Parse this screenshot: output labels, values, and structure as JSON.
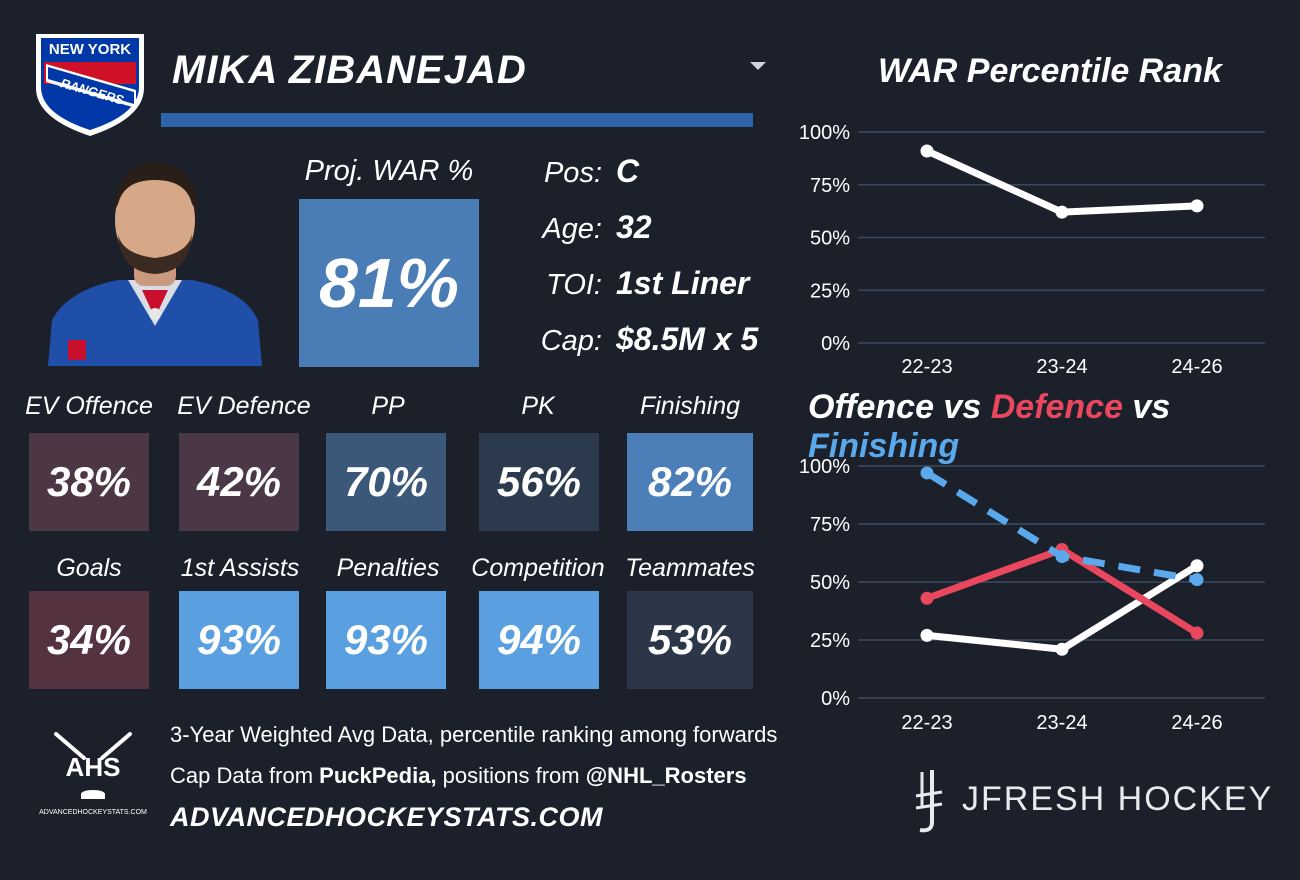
{
  "player": {
    "name": "MIKA ZIBANEJAD",
    "team_logo_text_top": "NEW YORK",
    "team_logo_text_bottom": "RANGERS",
    "proj_war_label": "Proj. WAR %",
    "proj_war_value": "81%",
    "info": [
      {
        "label": "Pos:",
        "value": "C"
      },
      {
        "label": "Age:",
        "value": "32"
      },
      {
        "label": "TOI:",
        "value": "1st Liner"
      },
      {
        "label": "Cap:",
        "value": "$8.5M x 5"
      }
    ]
  },
  "stats_row1": [
    {
      "label": "EV Offence",
      "value": "38%",
      "color": "#4e3744"
    },
    {
      "label": "EV Defence",
      "value": "42%",
      "color": "#4a3847"
    },
    {
      "label": "PP",
      "value": "70%",
      "color": "#3c5879"
    },
    {
      "label": "PK",
      "value": "56%",
      "color": "#2c3a4d"
    },
    {
      "label": "Finishing",
      "value": "82%",
      "color": "#4c7fb8"
    }
  ],
  "stats_row2": [
    {
      "label": "Goals",
      "value": "34%",
      "color": "#55323f"
    },
    {
      "label": "1st Assists",
      "value": "93%",
      "color": "#5a9fe0"
    },
    {
      "label": "Penalties",
      "value": "93%",
      "color": "#5a9fe0"
    },
    {
      "label": "Competition",
      "value": "94%",
      "color": "#5a9fe0"
    },
    {
      "label": "Teammates",
      "value": "53%",
      "color": "#2c3649"
    }
  ],
  "footer": {
    "line1": "3-Year Weighted Avg Data, percentile ranking among forwards",
    "line2_prefix": "Cap Data from ",
    "line2_source1": "PuckPedia,",
    "line2_middle": " positions from ",
    "line2_source2": "@NHL_Rosters",
    "site": "ADVANCEDHOCKEYSTATS.COM",
    "ahs_logo_text": "AHS",
    "ahs_logo_sub": "ADVANCEDHOCKEYSTATS.COM",
    "brand": "JFRESH HOCKEY"
  },
  "colors": {
    "offence": "#ffffff",
    "defence": "#e8475e",
    "finishing": "#5aa9ec",
    "background": "#1b202b",
    "gridline": "#3a4a5e"
  },
  "chart_data": [
    {
      "type": "line",
      "title": "WAR Percentile Rank",
      "x": [
        "22-23",
        "23-24",
        "24-26"
      ],
      "series": [
        {
          "values": [
            91,
            62,
            65
          ],
          "color": "#ffffff"
        }
      ],
      "ylim": [
        0,
        100
      ],
      "yticks": [
        "0%",
        "25%",
        "50%",
        "75%",
        "100%"
      ],
      "grid": true
    },
    {
      "type": "line",
      "title_parts": [
        "Offence",
        " vs ",
        "Defence",
        " vs ",
        "Finishing"
      ],
      "x": [
        "22-23",
        "23-24",
        "24-26"
      ],
      "series": [
        {
          "name": "Offence",
          "values": [
            27,
            21,
            57
          ],
          "color": "#ffffff",
          "style": "solid"
        },
        {
          "name": "Defence",
          "values": [
            43,
            64,
            28
          ],
          "color": "#e8475e",
          "style": "solid"
        },
        {
          "name": "Finishing",
          "values": [
            97,
            61,
            51
          ],
          "color": "#5aa9ec",
          "style": "dashed"
        }
      ],
      "ylim": [
        0,
        100
      ],
      "yticks": [
        "0%",
        "25%",
        "50%",
        "75%",
        "100%"
      ],
      "grid": true
    }
  ]
}
